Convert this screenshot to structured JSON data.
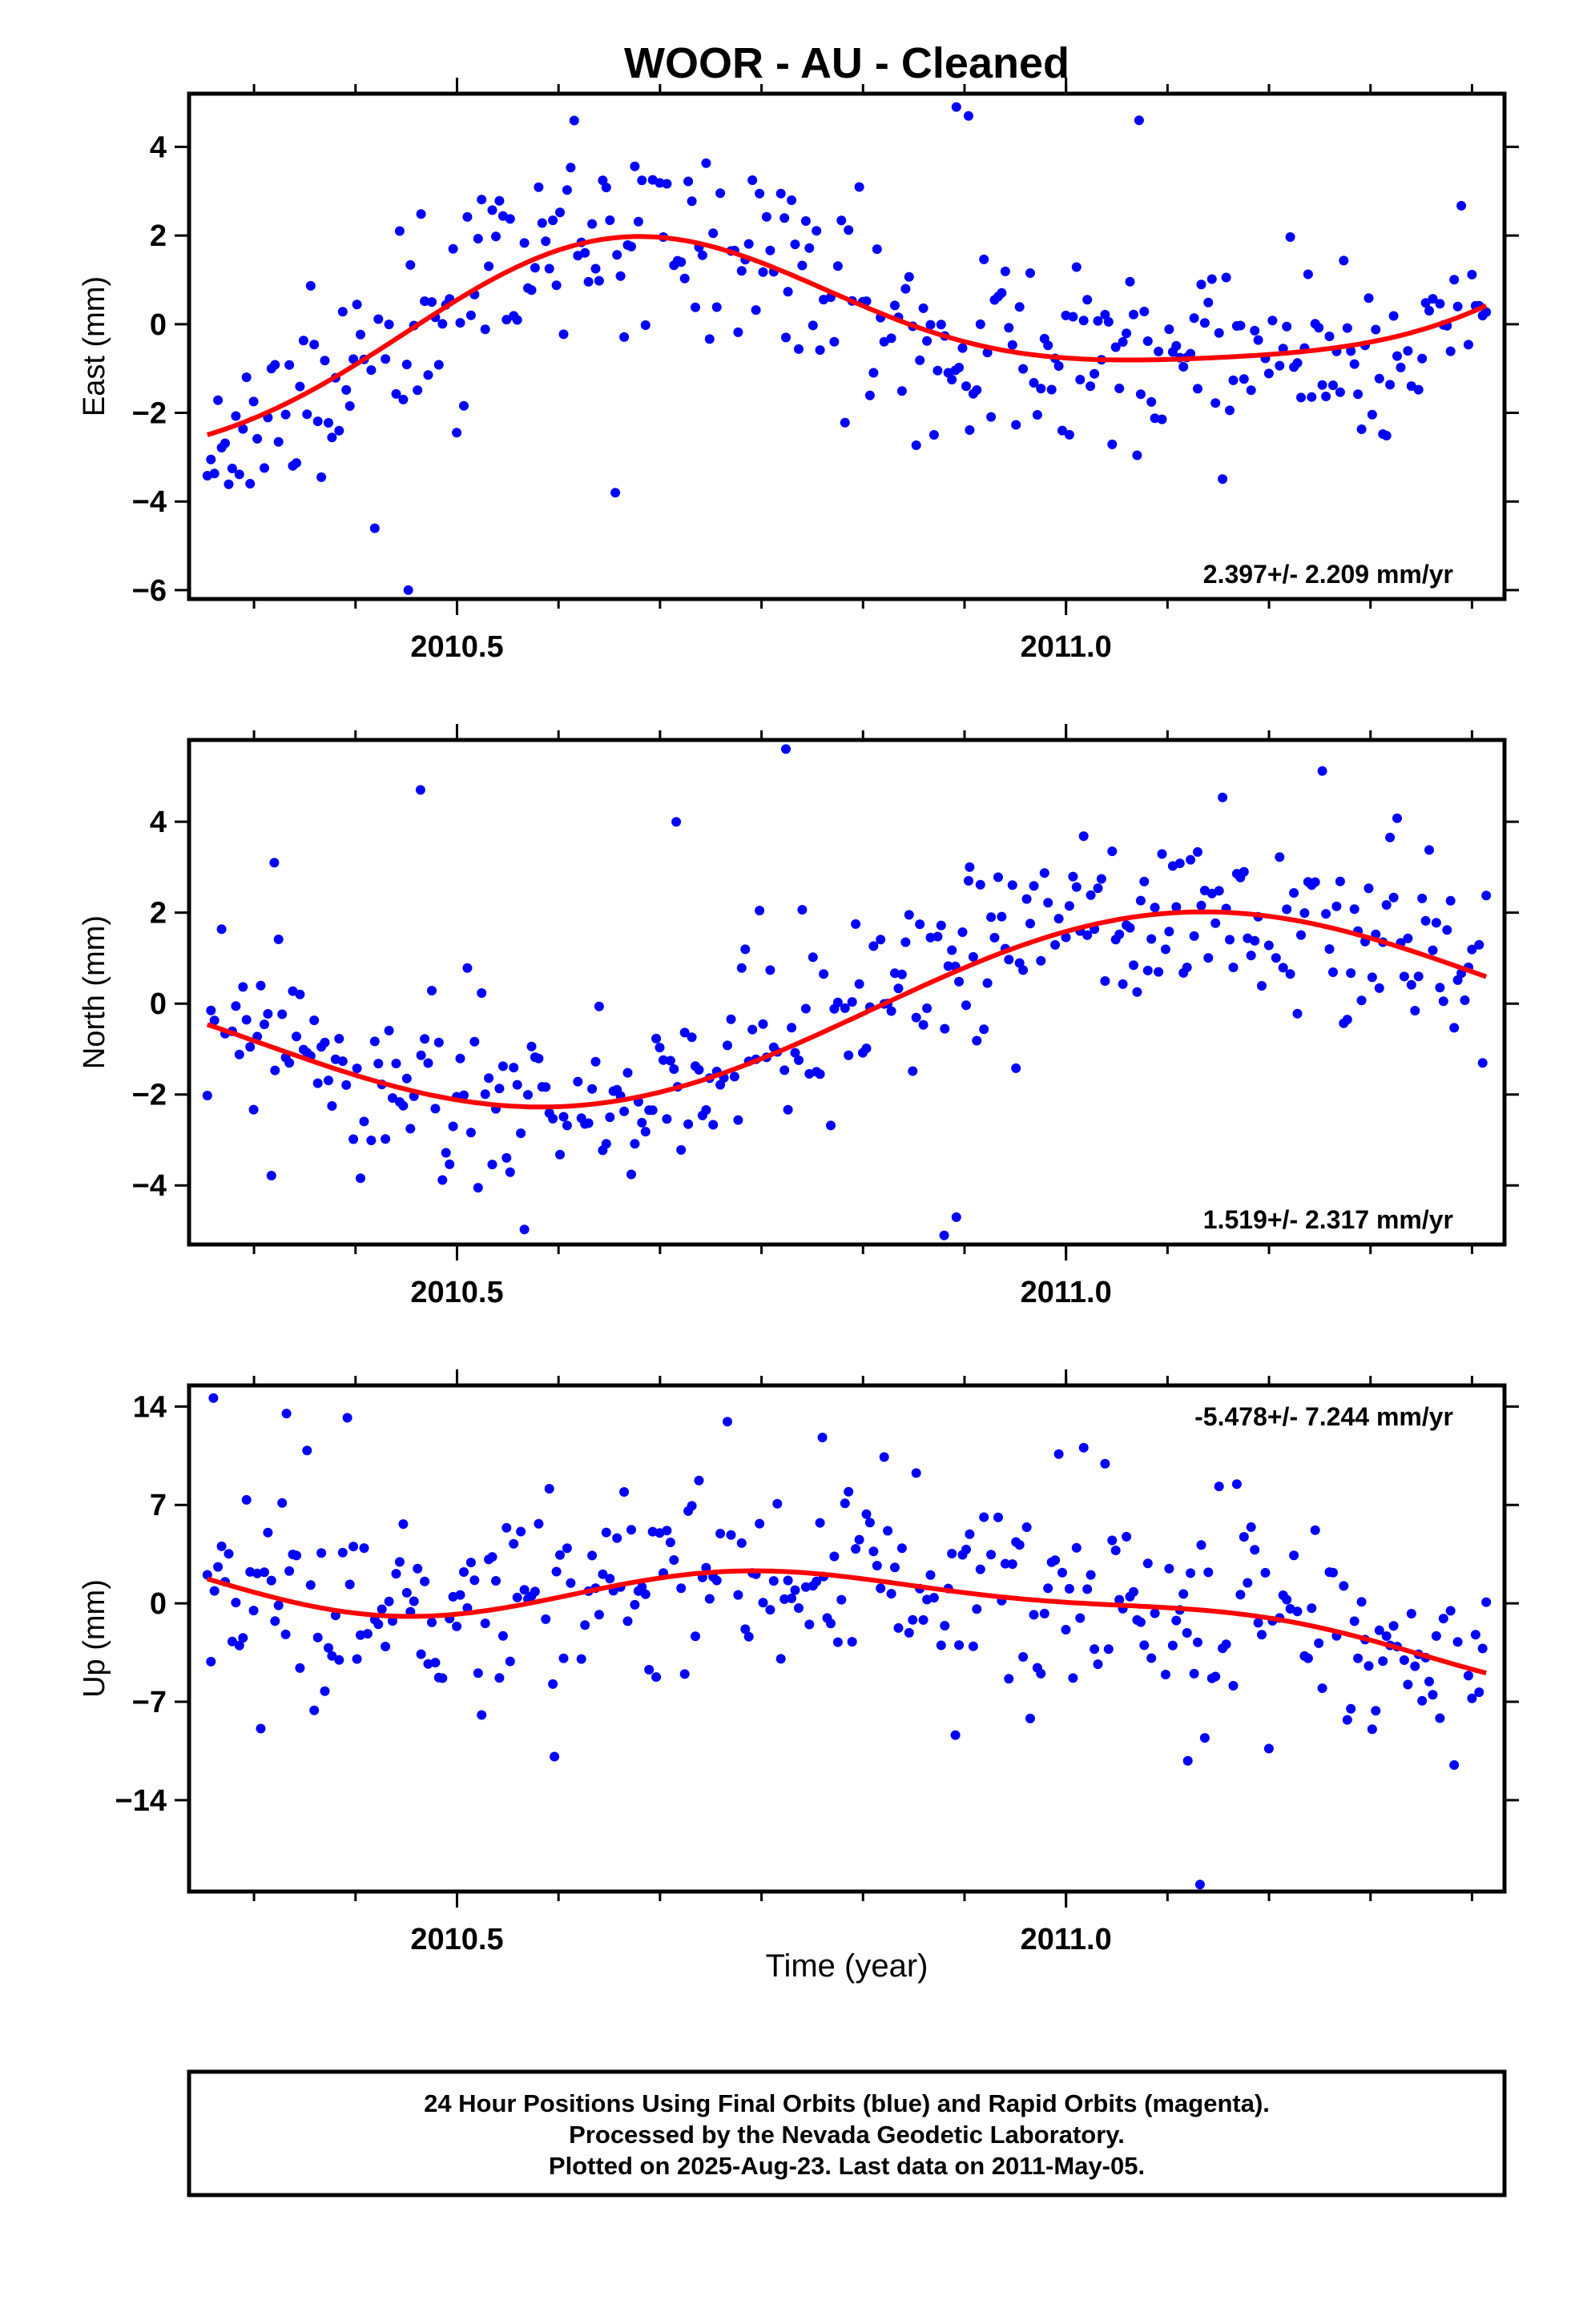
{
  "title": "WOOR  - AU - Cleaned",
  "x_axis_label": "Time (year)",
  "footer": {
    "lines": [
      "24 Hour Positions Using Final Orbits (blue) and Rapid Orbits (magenta).",
      "Processed by the Nevada Geodetic Laboratory.",
      "Plotted on 2025-Aug-23. Last data on 2011-May-05."
    ]
  },
  "colors": {
    "points": "#0000ff",
    "fit": "#ff0000",
    "frame": "#000000"
  },
  "chart_data": [
    {
      "type": "scatter",
      "component": "east",
      "ylabel": "East (mm)",
      "rate_text": "2.397+/- 2.209 mm/yr",
      "xlim": [
        2010.28,
        2011.36
      ],
      "ylim": [
        -6.2,
        5.2
      ],
      "yticks": [
        -6,
        -4,
        -2,
        0,
        2,
        4
      ],
      "xticks": [
        2010.5,
        2011.0
      ],
      "xtick_labels": [
        "2010.5",
        "2011.0"
      ],
      "fit": {
        "offset": 0.06,
        "slope": 2.397,
        "t0": 2010.82,
        "amp1": 1.95,
        "phase1": 3.84,
        "amp2": 0.4,
        "phase2": 0.0
      },
      "seed": 11,
      "scatter_sd": 1.05,
      "start": 2010.295,
      "end": 2011.345,
      "count": 360,
      "outliers": [
        [
          2010.46,
          -6.0
        ],
        [
          2010.91,
          4.9
        ],
        [
          2010.92,
          4.7
        ],
        [
          2011.06,
          4.6
        ],
        [
          2011.02,
          -1.4
        ],
        [
          2010.63,
          -3.8
        ],
        [
          2010.77,
          -0.3
        ]
      ]
    },
    {
      "type": "scatter",
      "component": "north",
      "ylabel": "North (mm)",
      "rate_text": "1.519+/- 2.317 mm/yr",
      "xlim": [
        2010.28,
        2011.36
      ],
      "ylim": [
        -5.3,
        5.8
      ],
      "yticks": [
        -4,
        -2,
        0,
        2,
        4
      ],
      "xticks": [
        2010.5,
        2011.0
      ],
      "xtick_labels": [
        "2010.5",
        "2011.0"
      ],
      "fit": {
        "offset": -0.16,
        "slope": 1.519,
        "t0": 2010.82,
        "amp1": 1.75,
        "phase1": 1.0,
        "amp2": 0.0,
        "phase2": 0.0
      },
      "seed": 23,
      "scatter_sd": 1.0,
      "start": 2010.295,
      "end": 2011.345,
      "count": 360,
      "outliers": [
        [
          2010.77,
          5.6
        ],
        [
          2010.47,
          4.7
        ],
        [
          2010.92,
          2.7
        ],
        [
          2010.9,
          -5.1
        ],
        [
          2010.91,
          -4.7
        ],
        [
          2010.35,
          3.1
        ],
        [
          2010.68,
          4.0
        ]
      ]
    },
    {
      "type": "scatter",
      "component": "up",
      "ylabel": "Up (mm)",
      "rate_text": "-5.478+/- 7.244 mm/yr",
      "xlim": [
        2010.28,
        2011.36
      ],
      "ylim": [
        -20.5,
        15.5
      ],
      "yticks": [
        -14,
        -7,
        0,
        7,
        14
      ],
      "xticks": [
        2010.5,
        2011.0
      ],
      "xtick_labels": [
        "2010.5",
        "2011.0"
      ],
      "fit": {
        "offset": 0.05,
        "slope": -5.478,
        "t0": 2010.82,
        "amp1": 2.1,
        "phase1": 2.12,
        "amp2": 0.95,
        "phase2": 5.32
      },
      "seed": 37,
      "scatter_sd": 3.8,
      "start": 2010.295,
      "end": 2011.345,
      "count": 360,
      "outliers": [
        [
          2010.3,
          14.6
        ],
        [
          2011.11,
          -20.0
        ],
        [
          2010.8,
          11.8
        ],
        [
          2010.36,
          13.5
        ],
        [
          2010.41,
          13.2
        ],
        [
          2010.58,
          -10.9
        ],
        [
          2011.1,
          -11.2
        ]
      ]
    }
  ]
}
